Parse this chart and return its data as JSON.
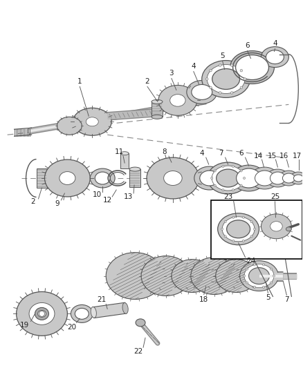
{
  "bg_color": "#ffffff",
  "gc": "#555555",
  "gf": "#d0d0d0",
  "lc": "#555555",
  "shaft_color": "#cccccc",
  "fig_w": 4.38,
  "fig_h": 5.33,
  "dpi": 100
}
